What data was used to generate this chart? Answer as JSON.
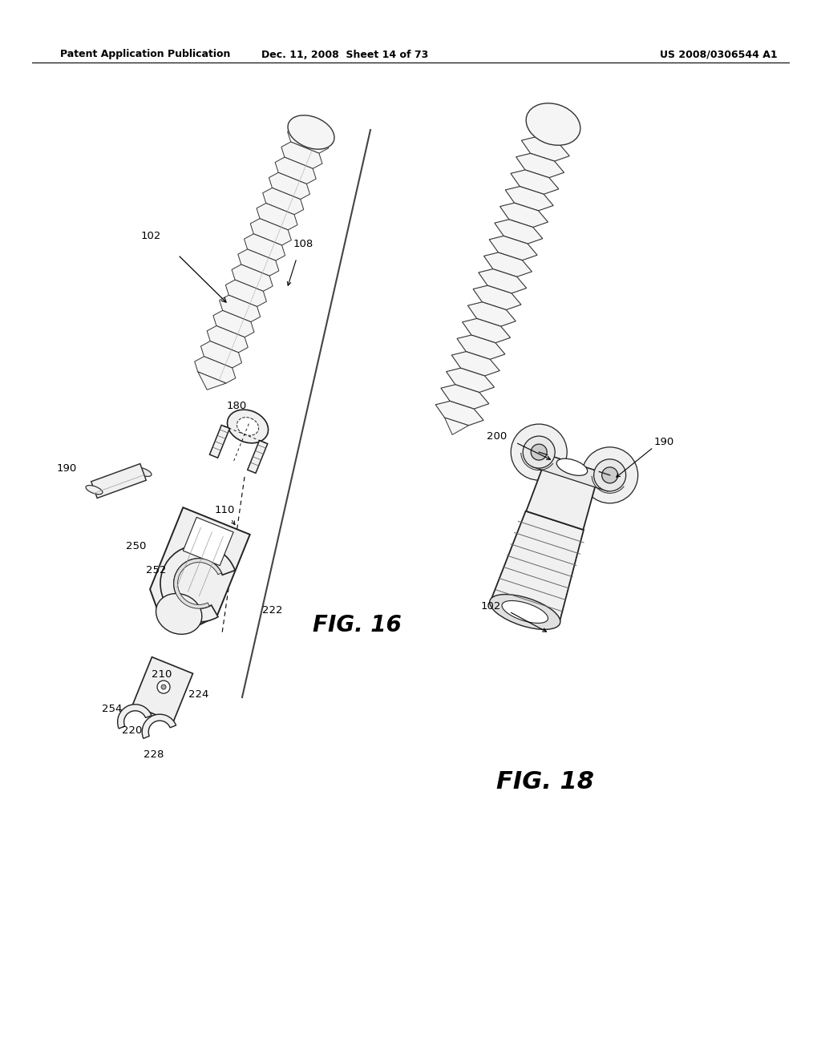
{
  "background_color": "#ffffff",
  "header_left": "Patent Application Publication",
  "header_mid": "Dec. 11, 2008  Sheet 14 of 73",
  "header_right": "US 2008/0306544 A1",
  "fig16_label": "FIG. 16",
  "fig18_label": "FIG. 18",
  "screw_facecolor": "#f0f0f0",
  "screw_flange_color": "#d8d8d8",
  "screw_edge_color": "#333333",
  "body_facecolor": "#eeeeee",
  "body_edge_color": "#222222"
}
